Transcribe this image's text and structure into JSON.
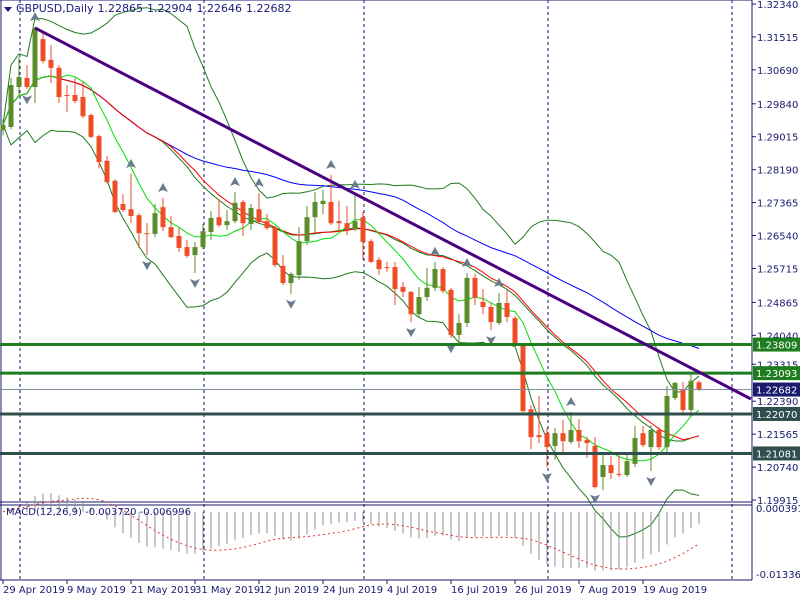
{
  "header": {
    "symbol": "GBPUSD,Daily",
    "open": "1.22865",
    "high": "1.22904",
    "low": "1.22646",
    "close": "1.22682"
  },
  "macd": {
    "label": "MACD(12,26,9)",
    "main": "-0.003720",
    "signal": "-0.006996",
    "axis_top": "0.000391",
    "axis_top_overlap": "0.00",
    "axis_bottom": "-0.013368"
  },
  "price_axis": {
    "ticks": [
      "1.32340",
      "1.31515",
      "1.30690",
      "1.29840",
      "1.29015",
      "1.28190",
      "1.27365",
      "1.26540",
      "1.25715",
      "1.24865",
      "1.24040",
      "1.23315",
      "1.22390",
      "1.21565",
      "1.20740",
      "1.19915"
    ],
    "range": [
      1.19915,
      1.3234
    ]
  },
  "date_axis": {
    "labels": [
      "29 Apr 2019",
      "9 May 2019",
      "21 May 2019",
      "31 May 2019",
      "12 Jun 2019",
      "24 Jun 2019",
      "4 Jul 2019",
      "16 Jul 2019",
      "26 Jul 2019",
      "7 Aug 2019",
      "19 Aug 2019"
    ]
  },
  "levels": [
    {
      "price": 1.23809,
      "label": "1.23809",
      "color": "#1e7d1e"
    },
    {
      "price": 1.23093,
      "label": "1.23093",
      "color": "#1e7d1e"
    },
    {
      "price": 1.22682,
      "label": "1.22682",
      "color": "#1a1a6e",
      "type": "bid"
    },
    {
      "price": 1.2207,
      "label": "1.22070",
      "color": "#2f4f4f"
    },
    {
      "price": 1.21081,
      "label": "1.21081",
      "color": "#2f4f4f"
    }
  ],
  "trendline": {
    "from_bar": 4,
    "from_price": 1.3174,
    "to_bar": 87,
    "to_price": 1.2312,
    "color": "#4b0082"
  },
  "colors": {
    "bull": "#5b8c2a",
    "bear": "#f04c28",
    "bands": "#1f7a1f",
    "ma_fast": "#00e000",
    "ma_mid": "#ff0000",
    "ma_slow": "#0000ff",
    "axis": "#1a1a6e",
    "grid": "#1a1a6e"
  },
  "indicators": {
    "bollinger": [
      20,
      2
    ],
    "ma_fast": 8,
    "ma_mid": 21,
    "ma_slow": 50
  },
  "month_separators_bars": [
    2,
    25,
    45,
    68,
    91
  ],
  "fractals": {
    "up": [
      4,
      16,
      20,
      29,
      32,
      41,
      44,
      54,
      58,
      62,
      71
    ],
    "down": [
      3,
      18,
      24,
      36,
      51,
      56,
      61,
      68,
      74,
      81
    ]
  },
  "chart_data": {
    "type": "candlestick",
    "ohlc": [
      [
        1.2918,
        1.2945,
        1.2905,
        1.2931
      ],
      [
        1.2926,
        1.3049,
        1.292,
        1.3031
      ],
      [
        1.3026,
        1.3101,
        1.3006,
        1.3051
      ],
      [
        1.3049,
        1.3081,
        1.302,
        1.3026
      ],
      [
        1.3026,
        1.3176,
        1.2986,
        1.3174
      ],
      [
        1.3146,
        1.316,
        1.3085,
        1.3091
      ],
      [
        1.3094,
        1.3131,
        1.3036,
        1.3074
      ],
      [
        1.3074,
        1.3081,
        1.2986,
        1.3001
      ],
      [
        1.3006,
        1.3031,
        1.2963,
        1.3004
      ],
      [
        1.3006,
        1.3049,
        1.2985,
        1.2991
      ],
      [
        1.3001,
        1.3041,
        1.2948,
        1.2953
      ],
      [
        1.2956,
        1.296,
        1.2898,
        1.2901
      ],
      [
        1.2903,
        1.2907,
        1.2823,
        1.2838
      ],
      [
        1.2841,
        1.2853,
        1.2785,
        1.2788
      ],
      [
        1.2791,
        1.2795,
        1.271,
        1.2713
      ],
      [
        1.2733,
        1.2758,
        1.2713,
        1.2718
      ],
      [
        1.272,
        1.2808,
        1.2685,
        1.2703
      ],
      [
        1.2705,
        1.271,
        1.2623,
        1.266
      ],
      [
        1.266,
        1.2685,
        1.2605,
        1.2658
      ],
      [
        1.2658,
        1.2733,
        1.265,
        1.271
      ],
      [
        1.2725,
        1.2748,
        1.2665,
        1.2675
      ],
      [
        1.2675,
        1.2703,
        1.2648,
        1.265
      ],
      [
        1.2653,
        1.2673,
        1.2613,
        1.2623
      ],
      [
        1.2625,
        1.2643,
        1.2598,
        1.2603
      ],
      [
        1.2605,
        1.2638,
        1.256,
        1.2625
      ],
      [
        1.2625,
        1.2683,
        1.262,
        1.2665
      ],
      [
        1.2663,
        1.2715,
        1.2643,
        1.2698
      ],
      [
        1.27,
        1.2745,
        1.2675,
        1.268
      ],
      [
        1.268,
        1.2718,
        1.2668,
        1.269
      ],
      [
        1.269,
        1.2763,
        1.2685,
        1.2736
      ],
      [
        1.2738,
        1.2743,
        1.2653,
        1.2685
      ],
      [
        1.2683,
        1.2733,
        1.2668,
        1.2723
      ],
      [
        1.272,
        1.2761,
        1.2683,
        1.2688
      ],
      [
        1.269,
        1.2708,
        1.2668,
        1.2673
      ],
      [
        1.2673,
        1.2678,
        1.2575,
        1.258
      ],
      [
        1.2578,
        1.2605,
        1.253,
        1.2535
      ],
      [
        1.2535,
        1.2562,
        1.2508,
        1.2558
      ],
      [
        1.2555,
        1.2675,
        1.2543,
        1.264
      ],
      [
        1.264,
        1.2728,
        1.263,
        1.27
      ],
      [
        1.27,
        1.2763,
        1.2663,
        1.2738
      ],
      [
        1.2733,
        1.2768,
        1.2708,
        1.2741
      ],
      [
        1.2738,
        1.2806,
        1.268,
        1.2685
      ],
      [
        1.269,
        1.2741,
        1.2663,
        1.2685
      ],
      [
        1.2685,
        1.2728,
        1.2655,
        1.267
      ],
      [
        1.267,
        1.2756,
        1.2665,
        1.269
      ],
      [
        1.27,
        1.2713,
        1.2593,
        1.2638
      ],
      [
        1.264,
        1.2645,
        1.2585,
        1.2588
      ],
      [
        1.2593,
        1.26,
        1.2555,
        1.257
      ],
      [
        1.2575,
        1.2588,
        1.2563,
        1.2573
      ],
      [
        1.2575,
        1.2588,
        1.248,
        1.252
      ],
      [
        1.2525,
        1.2538,
        1.25,
        1.2513
      ],
      [
        1.2513,
        1.2515,
        1.2437,
        1.2457
      ],
      [
        1.2457,
        1.2525,
        1.2447,
        1.25
      ],
      [
        1.25,
        1.2573,
        1.249,
        1.2523
      ],
      [
        1.2523,
        1.2588,
        1.2515,
        1.257
      ],
      [
        1.257,
        1.2575,
        1.251,
        1.2515
      ],
      [
        1.2518,
        1.2523,
        1.2397,
        1.2405
      ],
      [
        1.2405,
        1.2457,
        1.2385,
        1.2435
      ],
      [
        1.2435,
        1.256,
        1.2425,
        1.2548
      ],
      [
        1.2548,
        1.2558,
        1.248,
        1.2498
      ],
      [
        1.2488,
        1.252,
        1.2457,
        1.2475
      ],
      [
        1.2475,
        1.2485,
        1.2417,
        1.2437
      ],
      [
        1.2435,
        1.251,
        1.243,
        1.2485
      ],
      [
        1.2485,
        1.2518,
        1.2437,
        1.245
      ],
      [
        1.2447,
        1.2452,
        1.2375,
        1.238
      ],
      [
        1.238,
        1.2385,
        1.2212,
        1.2214
      ],
      [
        1.2219,
        1.2229,
        1.2119,
        1.2149
      ],
      [
        1.2154,
        1.2252,
        1.2134,
        1.2149
      ],
      [
        1.2159,
        1.2172,
        1.2074,
        1.2124
      ],
      [
        1.2127,
        1.2172,
        1.2092,
        1.2159
      ],
      [
        1.2159,
        1.2192,
        1.2104,
        1.2139
      ],
      [
        1.2137,
        1.2212,
        1.2132,
        1.2167
      ],
      [
        1.2167,
        1.2194,
        1.2122,
        1.2139
      ],
      [
        1.2142,
        1.215,
        1.2097,
        1.2134
      ],
      [
        1.2127,
        1.2149,
        1.202,
        1.2024
      ],
      [
        1.2049,
        1.2109,
        1.2016,
        1.2079
      ],
      [
        1.2079,
        1.2102,
        1.2044,
        1.2059
      ],
      [
        1.2057,
        1.2104,
        1.2049,
        1.2055
      ],
      [
        1.2054,
        1.2104,
        1.2049,
        1.2089
      ],
      [
        1.2082,
        1.2177,
        1.2074,
        1.2147
      ],
      [
        1.2159,
        1.2177,
        1.2124,
        1.2129
      ],
      [
        1.2124,
        1.2179,
        1.2064,
        1.2167
      ],
      [
        1.2167,
        1.2174,
        1.2117,
        1.2124
      ],
      [
        1.2124,
        1.2277,
        1.2112,
        1.2252
      ],
      [
        1.2247,
        1.2287,
        1.2242,
        1.2285
      ],
      [
        1.2267,
        1.2287,
        1.2209,
        1.2217
      ],
      [
        1.2217,
        1.231,
        1.2209,
        1.229
      ],
      [
        1.22865,
        1.22904,
        1.22646,
        1.22682
      ]
    ],
    "ylim": [
      1.19915,
      1.3234
    ]
  }
}
